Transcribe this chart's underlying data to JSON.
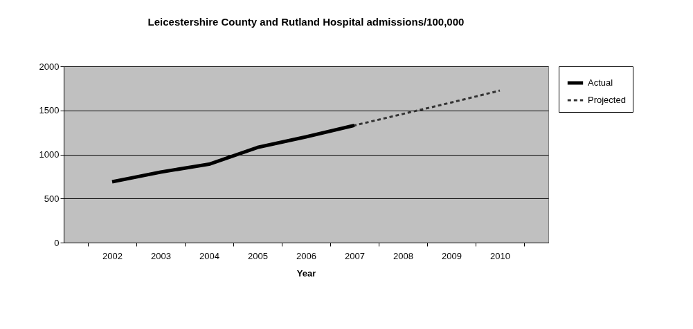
{
  "chart_data": {
    "type": "line",
    "title": "Leicestershire County and Rutland Hospital admissions/100,000",
    "xlabel": "Year",
    "categories": [
      "2002",
      "2003",
      "2004",
      "2005",
      "2006",
      "2007",
      "2008",
      "2009",
      "2010"
    ],
    "series": [
      {
        "name": "Actual",
        "color": "#000000",
        "line_style": "solid",
        "values": [
          690,
          800,
          890,
          1080,
          1200,
          1330,
          null,
          null,
          null
        ]
      },
      {
        "name": "Projected",
        "color": "#333333",
        "line_style": "dashed",
        "values": [
          null,
          null,
          null,
          null,
          null,
          1330,
          1460,
          1590,
          1725
        ]
      }
    ],
    "ylim": [
      0,
      2000
    ],
    "yticks": [
      0,
      500,
      1000,
      1500,
      2000
    ],
    "grid": "y",
    "legend": "right",
    "marker": "none"
  }
}
